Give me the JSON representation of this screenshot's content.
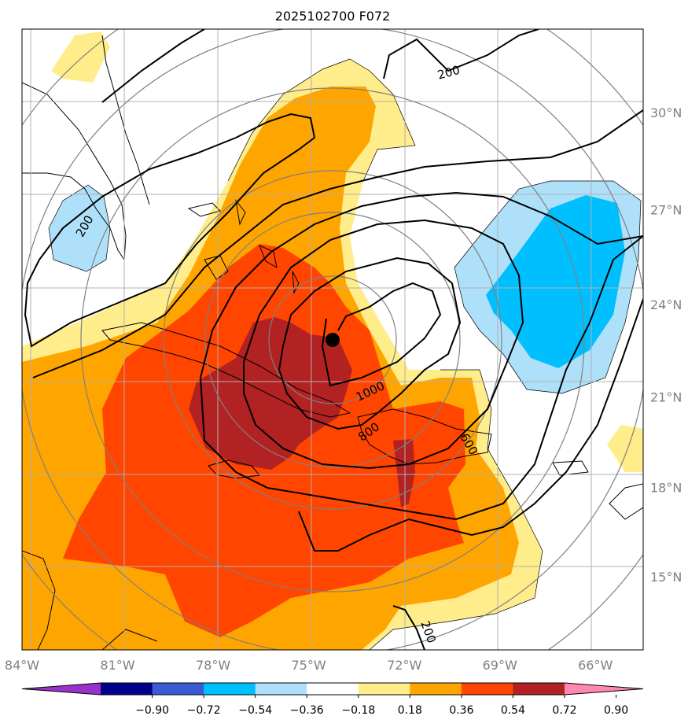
{
  "chart_data": {
    "type": "map-contour",
    "title": "2025102700 F072",
    "projection": "Mercator",
    "extent": {
      "lon": [
        -84,
        -64.5
      ],
      "lat": [
        12.5,
        32.5
      ]
    },
    "lon_ticks": [
      -84,
      -81,
      -78,
      -75,
      -72,
      -69,
      -66
    ],
    "lon_labels": [
      "84°W",
      "81°W",
      "78°W",
      "75°W",
      "72°W",
      "69°W",
      "66°W"
    ],
    "lat_ticks": [
      15,
      18,
      21,
      24,
      27,
      30
    ],
    "lat_labels": [
      "15°N",
      "18°N",
      "21°N",
      "24°N",
      "27°N",
      "30°N"
    ],
    "fill_levels": [
      -0.9,
      -0.72,
      -0.54,
      -0.36,
      -0.18,
      0.18,
      0.36,
      0.54,
      0.72,
      0.9
    ],
    "colorbar": {
      "tick_labels": [
        "−0.90",
        "−0.72",
        "−0.54",
        "−0.36",
        "−0.18",
        "0.18",
        "0.36",
        "0.54",
        "0.72",
        "0.90"
      ],
      "colors": [
        "#9932cc",
        "#00008b",
        "#3b5bd6",
        "#00bfff",
        "#aee0fa",
        "#ffffff",
        "#ffec8b",
        "#ffa500",
        "#ff4500",
        "#b22222",
        "#ff88b0"
      ],
      "extend": "both"
    },
    "contour_labels": [
      "200",
      "200",
      "200",
      "1000",
      "800",
      "600"
    ],
    "contour_levels": [
      200,
      400,
      600,
      800,
      1000
    ],
    "center": {
      "lon": -73.9,
      "lat": 22.3
    },
    "range_ring_radii_km": [
      200,
      400,
      600,
      800,
      1000,
      1200
    ]
  }
}
